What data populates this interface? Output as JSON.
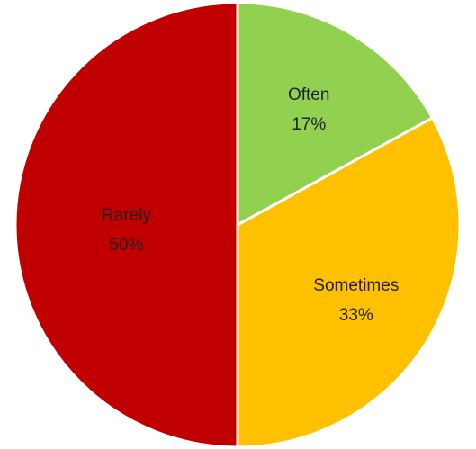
{
  "chart_data": {
    "type": "pie",
    "start_angle_deg": 0,
    "direction": "clockwise",
    "slices": [
      {
        "label": "Often",
        "value": 17,
        "value_label": "17%",
        "color": "#92d050"
      },
      {
        "label": "Sometimes",
        "value": 33,
        "value_label": "33%",
        "color": "#ffc000"
      },
      {
        "label": "Rarely",
        "value": 50,
        "value_label": "50%",
        "color": "#c00000"
      }
    ]
  }
}
